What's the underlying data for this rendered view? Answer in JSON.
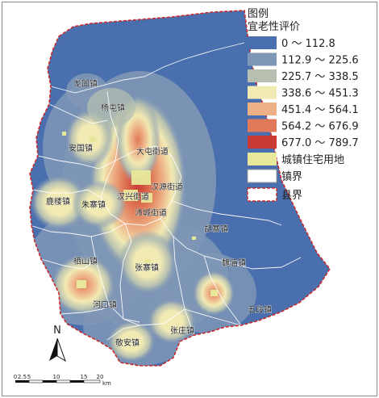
{
  "legend": {
    "title": "图例",
    "subtitle": "宜老性评价",
    "classes": [
      {
        "label": "0 ～ 112.8",
        "color": "#4a6fae"
      },
      {
        "label": "112.9 ～ 225.6",
        "color": "#7f97b6"
      },
      {
        "label": "225.7 ～ 338.5",
        "color": "#b7c0b0"
      },
      {
        "label": "338.6 ～ 451.3",
        "color": "#f2eab3"
      },
      {
        "label": "451.4 ～ 564.1",
        "color": "#eeb085"
      },
      {
        "label": "564.2 ～ 676.9",
        "color": "#e07a58"
      },
      {
        "label": "677.0 ～ 789.7",
        "color": "#c83a34"
      }
    ],
    "residential_label": "城镇住宅用地",
    "residential_color": "#e8e89a",
    "town_boundary_label": "镇界",
    "county_boundary_label": "县界",
    "county_boundary_color": "#cc2a2a"
  },
  "towns": [
    {
      "name": "龙固镇"
    },
    {
      "name": "杨屯镇"
    },
    {
      "name": "安国镇"
    },
    {
      "name": "大屯街道"
    },
    {
      "name": "汉源街道"
    },
    {
      "name": "鹿楼镇"
    },
    {
      "name": "朱寨镇"
    },
    {
      "name": "汉兴街道"
    },
    {
      "name": "沛城街道"
    },
    {
      "name": "胡寨镇"
    },
    {
      "name": "栖山镇"
    },
    {
      "name": "张寨镇"
    },
    {
      "name": "魏庙镇"
    },
    {
      "name": "河口镇"
    },
    {
      "name": "五段镇"
    },
    {
      "name": "张庄镇"
    },
    {
      "name": "敬安镇"
    }
  ],
  "north_arrow": {
    "label": "N"
  },
  "scale_bar": {
    "ticks": [
      "0",
      "2.5",
      "5",
      "10",
      "15",
      "20"
    ],
    "unit": "km"
  }
}
